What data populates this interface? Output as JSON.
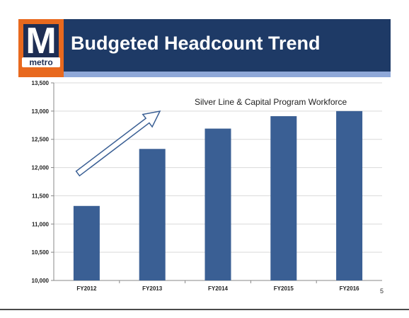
{
  "slide": {
    "title": "Budgeted Headcount Trend",
    "page_number": "5",
    "logo": {
      "letter": "M",
      "word": "metro",
      "colors": {
        "frame": "#e8691e",
        "mark": "#1e2e54"
      }
    },
    "colors": {
      "header": "#1e3a66",
      "header_stripe": "#8fa8d8",
      "bar": "#3a5f94"
    }
  },
  "chart_data": {
    "type": "bar",
    "categories": [
      "FY2012",
      "FY2013",
      "FY2014",
      "FY2015",
      "FY2016"
    ],
    "values": [
      11320,
      12330,
      12690,
      12910,
      13000
    ],
    "title": "",
    "xlabel": "",
    "ylabel": "",
    "ylim": [
      10000,
      13500
    ],
    "yticks": [
      10000,
      10500,
      11000,
      11500,
      12000,
      12500,
      13000,
      13500
    ],
    "ytick_labels": [
      "10,000",
      "10,500",
      "11,000",
      "11,500",
      "12,000",
      "12,500",
      "13,000",
      "13,500"
    ],
    "grid": true,
    "annotation": "Silver Line & Capital Program Workforce",
    "trend_arrow": true
  }
}
